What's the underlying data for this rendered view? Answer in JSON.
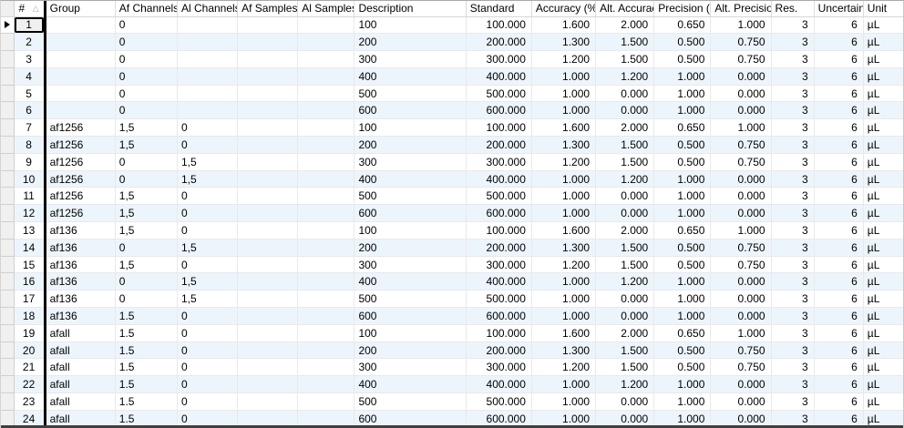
{
  "grid": {
    "sort_icon": "△",
    "row_indicator": "▶",
    "columns": [
      {
        "key": "num",
        "label": "#"
      },
      {
        "key": "group",
        "label": "Group"
      },
      {
        "key": "af_channels",
        "label": "Af Channels"
      },
      {
        "key": "al_channels",
        "label": "Al Channels"
      },
      {
        "key": "af_samples",
        "label": "Af Samples"
      },
      {
        "key": "al_samples",
        "label": "Al Samples"
      },
      {
        "key": "description",
        "label": "Description"
      },
      {
        "key": "standard",
        "label": "Standard"
      },
      {
        "key": "accuracy",
        "label": "Accuracy (%)"
      },
      {
        "key": "alt_accuracy",
        "label": "Alt. Accuracy"
      },
      {
        "key": "precision",
        "label": "Precision (%)"
      },
      {
        "key": "alt_precision",
        "label": "Alt. Precision"
      },
      {
        "key": "res",
        "label": "Res."
      },
      {
        "key": "uncertainty",
        "label": "Uncertainty"
      },
      {
        "key": "unit",
        "label": "Unit"
      }
    ],
    "rows": [
      [
        "1",
        "",
        "0",
        "",
        "",
        "",
        "100",
        "100.000",
        "1.600",
        "2.000",
        "0.650",
        "1.000",
        "3",
        "6",
        "µL"
      ],
      [
        "2",
        "",
        "0",
        "",
        "",
        "",
        "200",
        "200.000",
        "1.300",
        "1.500",
        "0.500",
        "0.750",
        "3",
        "6",
        "µL"
      ],
      [
        "3",
        "",
        "0",
        "",
        "",
        "",
        "300",
        "300.000",
        "1.200",
        "1.500",
        "0.500",
        "0.750",
        "3",
        "6",
        "µL"
      ],
      [
        "4",
        "",
        "0",
        "",
        "",
        "",
        "400",
        "400.000",
        "1.000",
        "1.200",
        "1.000",
        "0.000",
        "3",
        "6",
        "µL"
      ],
      [
        "5",
        "",
        "0",
        "",
        "",
        "",
        "500",
        "500.000",
        "1.000",
        "0.000",
        "1.000",
        "0.000",
        "3",
        "6",
        "µL"
      ],
      [
        "6",
        "",
        "0",
        "",
        "",
        "",
        "600",
        "600.000",
        "1.000",
        "0.000",
        "1.000",
        "0.000",
        "3",
        "6",
        "µL"
      ],
      [
        "7",
        "af1256",
        "1,5",
        "0",
        "",
        "",
        "100",
        "100.000",
        "1.600",
        "2.000",
        "0.650",
        "1.000",
        "3",
        "6",
        "µL"
      ],
      [
        "8",
        "af1256",
        "1,5",
        "0",
        "",
        "",
        "200",
        "200.000",
        "1.300",
        "1.500",
        "0.500",
        "0.750",
        "3",
        "6",
        "µL"
      ],
      [
        "9",
        "af1256",
        "0",
        "1,5",
        "",
        "",
        "300",
        "300.000",
        "1.200",
        "1.500",
        "0.500",
        "0.750",
        "3",
        "6",
        "µL"
      ],
      [
        "10",
        "af1256",
        "0",
        "1,5",
        "",
        "",
        "400",
        "400.000",
        "1.000",
        "1.200",
        "1.000",
        "0.000",
        "3",
        "6",
        "µL"
      ],
      [
        "11",
        "af1256",
        "1,5",
        "0",
        "",
        "",
        "500",
        "500.000",
        "1.000",
        "0.000",
        "1.000",
        "0.000",
        "3",
        "6",
        "µL"
      ],
      [
        "12",
        "af1256",
        "1,5",
        "0",
        "",
        "",
        "600",
        "600.000",
        "1.000",
        "0.000",
        "1.000",
        "0.000",
        "3",
        "6",
        "µL"
      ],
      [
        "13",
        "af136",
        "1,5",
        "0",
        "",
        "",
        "100",
        "100.000",
        "1.600",
        "2.000",
        "0.650",
        "1.000",
        "3",
        "6",
        "µL"
      ],
      [
        "14",
        "af136",
        "0",
        "1,5",
        "",
        "",
        "200",
        "200.000",
        "1.300",
        "1.500",
        "0.500",
        "0.750",
        "3",
        "6",
        "µL"
      ],
      [
        "15",
        "af136",
        "1,5",
        "0",
        "",
        "",
        "300",
        "300.000",
        "1.200",
        "1.500",
        "0.500",
        "0.750",
        "3",
        "6",
        "µL"
      ],
      [
        "16",
        "af136",
        "0",
        "1,5",
        "",
        "",
        "400",
        "400.000",
        "1.000",
        "1.200",
        "1.000",
        "0.000",
        "3",
        "6",
        "µL"
      ],
      [
        "17",
        "af136",
        "0",
        "1,5",
        "",
        "",
        "500",
        "500.000",
        "1.000",
        "0.000",
        "1.000",
        "0.000",
        "3",
        "6",
        "µL"
      ],
      [
        "18",
        "af136",
        "1.5",
        "0",
        "",
        "",
        "600",
        "600.000",
        "1.000",
        "0.000",
        "1.000",
        "0.000",
        "3",
        "6",
        "µL"
      ],
      [
        "19",
        "afall",
        "1.5",
        "0",
        "",
        "",
        "100",
        "100.000",
        "1.600",
        "2.000",
        "0.650",
        "1.000",
        "3",
        "6",
        "µL"
      ],
      [
        "20",
        "afall",
        "1.5",
        "0",
        "",
        "",
        "200",
        "200.000",
        "1.300",
        "1.500",
        "0.500",
        "0.750",
        "3",
        "6",
        "µL"
      ],
      [
        "21",
        "afall",
        "1.5",
        "0",
        "",
        "",
        "300",
        "300.000",
        "1.200",
        "1.500",
        "0.500",
        "0.750",
        "3",
        "6",
        "µL"
      ],
      [
        "22",
        "afall",
        "1.5",
        "0",
        "",
        "",
        "400",
        "400.000",
        "1.000",
        "1.200",
        "1.000",
        "0.000",
        "3",
        "6",
        "µL"
      ],
      [
        "23",
        "afall",
        "1.5",
        "0",
        "",
        "",
        "500",
        "500.000",
        "1.000",
        "0.000",
        "1.000",
        "0.000",
        "3",
        "6",
        "µL"
      ],
      [
        "24",
        "afall",
        "1.5",
        "0",
        "",
        "",
        "600",
        "600.000",
        "1.000",
        "0.000",
        "1.000",
        "0.000",
        "3",
        "6",
        "µL"
      ]
    ],
    "colors": {
      "alt_row_bg": "#edf5fc",
      "splitter": "#000000",
      "focus_border": "#000000",
      "selector_bg": "#f0f0f0"
    }
  }
}
